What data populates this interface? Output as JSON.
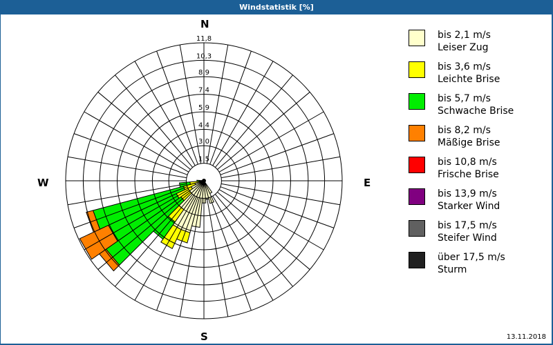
{
  "window": {
    "title": "Windstatistik [%]"
  },
  "footer": {
    "date": "13.11.2018"
  },
  "compass": {
    "north": "N",
    "east": "E",
    "south": "S",
    "west": "W"
  },
  "legend": [
    {
      "speed": "bis 2,1 m/s",
      "name": "Leiser Zug",
      "color": "#ffffcc"
    },
    {
      "speed": "bis 3,6 m/s",
      "name": "Leichte Brise",
      "color": "#ffff00"
    },
    {
      "speed": "bis 5,7 m/s",
      "name": "Schwache Brise",
      "color": "#00ee00"
    },
    {
      "speed": "bis 8,2 m/s",
      "name": "Mäßige Brise",
      "color": "#ff8000"
    },
    {
      "speed": "bis 10,8 m/s",
      "name": "Frische Brise",
      "color": "#ff0000"
    },
    {
      "speed": "bis 13,9 m/s",
      "name": "Starker Wind",
      "color": "#800080"
    },
    {
      "speed": "bis 17,5 m/s",
      "name": "Steifer Wind",
      "color": "#606060"
    },
    {
      "speed": "über 17,5 m/s",
      "name": "Sturm",
      "color": "#202020"
    }
  ],
  "chart_data": {
    "type": "polar-stacked-bar (wind rose)",
    "title": "Windstatistik [%]",
    "unit": "%",
    "radial_ticks": [
      "1,5",
      "3,0",
      "4,4",
      "5,9",
      "7,4",
      "8,9",
      "10,3",
      "11,8"
    ],
    "radial_tick_values": [
      1.5,
      3.0,
      4.4,
      5.9,
      7.4,
      8.9,
      10.3,
      11.8
    ],
    "rmax": 11.8,
    "sector_width_deg": 10,
    "spoke_count": 36,
    "series": [
      "bis 2,1 m/s",
      "bis 3,6 m/s",
      "bis 5,7 m/s",
      "bis 8,2 m/s",
      "bis 10,8 m/s",
      "bis 13,9 m/s",
      "bis 17,5 m/s",
      "über 17,5 m/s"
    ],
    "sectors_cumulative": [
      {
        "bearing": 150,
        "cum": [
          1.2,
          1.2,
          1.2,
          1.2
        ]
      },
      {
        "bearing": 160,
        "cum": [
          2.0,
          2.0,
          2.0,
          2.0
        ]
      },
      {
        "bearing": 170,
        "cum": [
          1.6,
          1.6,
          1.6,
          1.6
        ]
      },
      {
        "bearing": 180,
        "cum": [
          1.9,
          1.9,
          1.9,
          1.9
        ]
      },
      {
        "bearing": 190,
        "cum": [
          4.0,
          4.0,
          4.0,
          4.0
        ]
      },
      {
        "bearing": 200,
        "cum": [
          4.6,
          5.5,
          5.5,
          5.5
        ]
      },
      {
        "bearing": 210,
        "cum": [
          4.6,
          6.4,
          6.4,
          6.4
        ]
      },
      {
        "bearing": 220,
        "cum": [
          3.0,
          4.3,
          6.1,
          6.1
        ]
      },
      {
        "bearing": 230,
        "cum": [
          1.5,
          2.4,
          10.2,
          10.9
        ]
      },
      {
        "bearing": 240,
        "cum": [
          1.2,
          2.6,
          9.0,
          11.7
        ]
      },
      {
        "bearing": 250,
        "cum": [
          0.8,
          1.8,
          9.8,
          10.4
        ]
      },
      {
        "bearing": 260,
        "cum": [
          0.4,
          1.2,
          2.1,
          2.1
        ]
      },
      {
        "bearing": 270,
        "cum": [
          0.2,
          0.4,
          0.6,
          0.6
        ]
      }
    ],
    "legend_position": "right",
    "grid": true
  }
}
